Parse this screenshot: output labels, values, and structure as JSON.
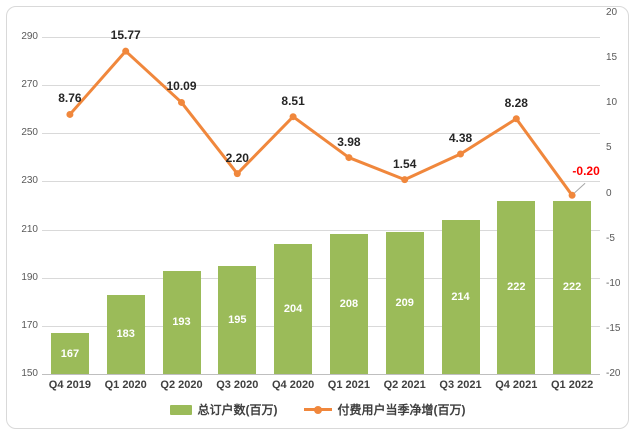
{
  "chart_data": {
    "type": "bar",
    "subtype": "combo-bar-line-dual-axis",
    "categories": [
      "Q4 2019",
      "Q1 2020",
      "Q2 2020",
      "Q3 2020",
      "Q4 2020",
      "Q1 2021",
      "Q2 2021",
      "Q3 2021",
      "Q4 2021",
      "Q1 2022"
    ],
    "series": [
      {
        "name": "总订户数(百万)",
        "type": "bar",
        "axis": "left",
        "color": "#9bbb59",
        "label_color": "#ffffff",
        "values": [
          167,
          183,
          193,
          195,
          204,
          208,
          209,
          214,
          222,
          222
        ]
      },
      {
        "name": "付费用户当季净增(百万)",
        "type": "line",
        "axis": "right",
        "color": "#f0873c",
        "label_color": "#262626",
        "negative_label_color": "#ff0000",
        "values": [
          8.76,
          15.77,
          10.09,
          2.2,
          8.51,
          3.98,
          1.54,
          4.38,
          8.28,
          -0.2
        ]
      }
    ],
    "left_axis": {
      "min": 150,
      "max": 300,
      "ticks": [
        290,
        270,
        250,
        230,
        210,
        190,
        170,
        150
      ]
    },
    "right_axis": {
      "min": -20,
      "max": 20,
      "ticks": [
        20,
        15,
        10,
        5,
        0,
        -5,
        -10,
        -15,
        -20
      ]
    },
    "grid": "on",
    "legend_position": "bottom",
    "title": "",
    "xlabel": "",
    "ylabel": ""
  },
  "colors": {
    "gridline": "#d9d9d9",
    "baseline": "#bfbfbf",
    "axis_tick_text": "#595959",
    "category_text": "#404040",
    "leader_line": "#a6a6a6",
    "frame_border": "#d9d9d9",
    "background": "#ffffff"
  }
}
